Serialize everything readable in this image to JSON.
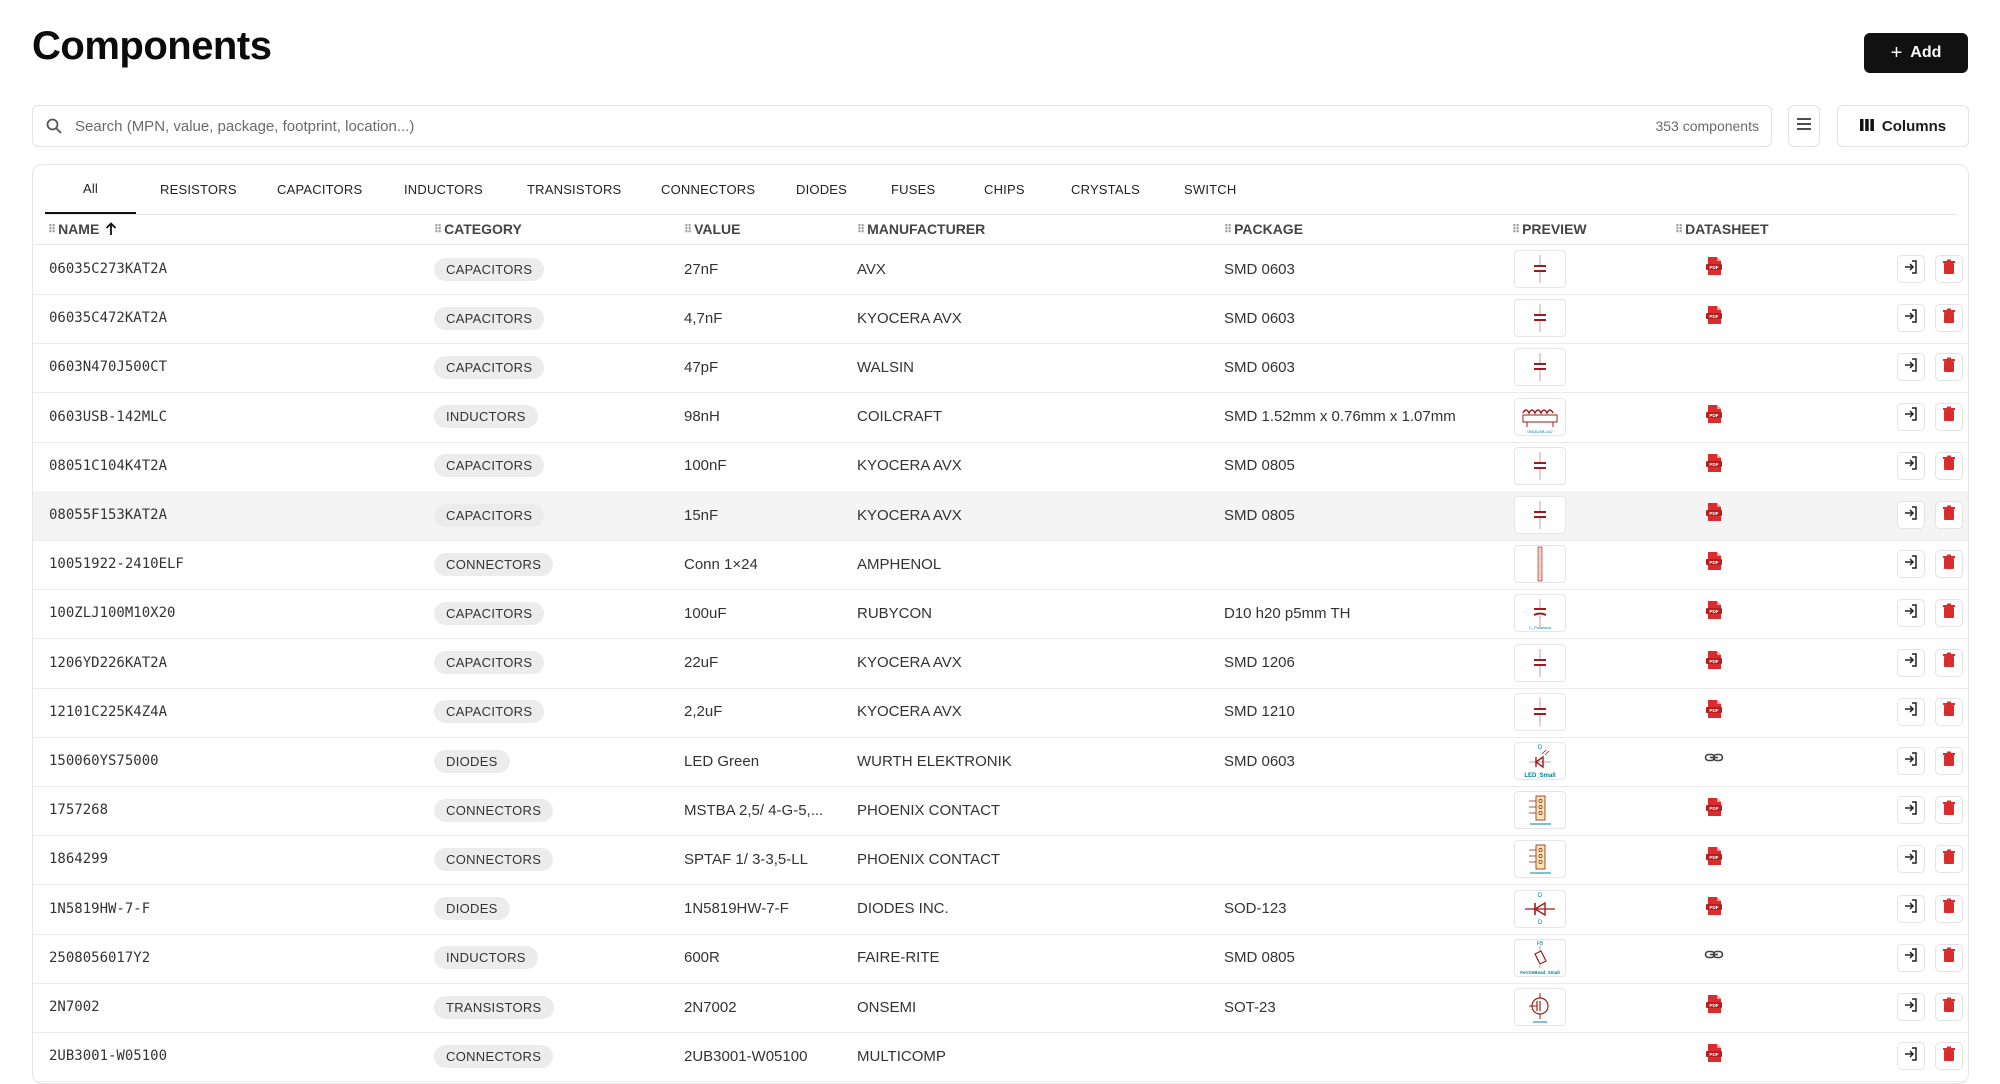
{
  "header": {
    "title": "Components",
    "add_label": "Add"
  },
  "search": {
    "placeholder": "Search (MPN, value, package, footprint, location...)",
    "count": "353 components"
  },
  "toolbar": {
    "columns_label": "Columns"
  },
  "tabs": [
    "All",
    "RESISTORS",
    "CAPACITORS",
    "INDUCTORS",
    "TRANSISTORS",
    "CONNECTORS",
    "DIODES",
    "FUSES",
    "CHIPS",
    "CRYSTALS",
    "SWITCH"
  ],
  "table": {
    "columns": [
      "NAME",
      "CATEGORY",
      "VALUE",
      "MANUFACTURER",
      "PACKAGE",
      "PREVIEW",
      "DATASHEET"
    ],
    "sort": {
      "column": "NAME",
      "direction": "ascending"
    },
    "rows": [
      {
        "name": "06035C273KAT2A",
        "category": "CAPACITORS",
        "value": "27nF",
        "manufacturer": "AVX",
        "package": "SMD 0603",
        "preview": "capacitor",
        "datasheet": "pdf"
      },
      {
        "name": "06035C472KAT2A",
        "category": "CAPACITORS",
        "value": "4,7nF",
        "manufacturer": "KYOCERA AVX",
        "package": "SMD 0603",
        "preview": "capacitor",
        "datasheet": "pdf"
      },
      {
        "name": "0603N470J500CT",
        "category": "CAPACITORS",
        "value": "47pF",
        "manufacturer": "WALSIN",
        "package": "SMD 0603",
        "preview": "capacitor",
        "datasheet": ""
      },
      {
        "name": "0603USB-142MLC",
        "category": "INDUCTORS",
        "value": "98nH",
        "manufacturer": "COILCRAFT",
        "package": "SMD 1.52mm x 0.76mm x 1.07mm",
        "preview": "inductor",
        "datasheet": "pdf"
      },
      {
        "name": "08051C104K4T2A",
        "category": "CAPACITORS",
        "value": "100nF",
        "manufacturer": "KYOCERA AVX",
        "package": "SMD 0805",
        "preview": "capacitor",
        "datasheet": "pdf"
      },
      {
        "name": "08055F153KAT2A",
        "category": "CAPACITORS",
        "value": "15nF",
        "manufacturer": "KYOCERA AVX",
        "package": "SMD 0805",
        "preview": "capacitor",
        "datasheet": "pdf"
      },
      {
        "name": "10051922-2410ELF",
        "category": "CONNECTORS",
        "value": "Conn 1×24",
        "manufacturer": "AMPHENOL",
        "package": "",
        "preview": "connector-strip",
        "datasheet": "pdf"
      },
      {
        "name": "100ZLJ100M10X20",
        "category": "CAPACITORS",
        "value": "100uF",
        "manufacturer": "RUBYCON",
        "package": "D10 h20 p5mm TH",
        "preview": "capacitor-polarized",
        "datasheet": "pdf"
      },
      {
        "name": "1206YD226KAT2A",
        "category": "CAPACITORS",
        "value": "22uF",
        "manufacturer": "KYOCERA AVX",
        "package": "SMD 1206",
        "preview": "capacitor",
        "datasheet": "pdf"
      },
      {
        "name": "12101C225K4Z4A",
        "category": "CAPACITORS",
        "value": "2,2uF",
        "manufacturer": "KYOCERA AVX",
        "package": "SMD 1210",
        "preview": "capacitor",
        "datasheet": "pdf"
      },
      {
        "name": "150060YS75000",
        "category": "DIODES",
        "value": "LED Green",
        "manufacturer": "WURTH ELEKTRONIK",
        "package": "SMD 0603",
        "preview": "led",
        "datasheet": "link"
      },
      {
        "name": "1757268",
        "category": "CONNECTORS",
        "value": "MSTBA 2,5/ 4-G-5,...",
        "manufacturer": "PHOENIX CONTACT",
        "package": "",
        "preview": "terminal",
        "datasheet": "pdf"
      },
      {
        "name": "1864299",
        "category": "CONNECTORS",
        "value": "SPTAF 1/ 3-3,5-LL",
        "manufacturer": "PHOENIX CONTACT",
        "package": "",
        "preview": "terminal",
        "datasheet": "pdf"
      },
      {
        "name": "1N5819HW-7-F",
        "category": "DIODES",
        "value": "1N5819HW-7-F",
        "manufacturer": "DIODES INC.",
        "package": "SOD-123",
        "preview": "diode",
        "datasheet": "pdf"
      },
      {
        "name": "2508056017Y2",
        "category": "INDUCTORS",
        "value": "600R",
        "manufacturer": "FAIRE-RITE",
        "package": "SMD 0805",
        "preview": "ferrite",
        "datasheet": "link"
      },
      {
        "name": "2N7002",
        "category": "TRANSISTORS",
        "value": "2N7002",
        "manufacturer": "ONSEMI",
        "package": "SOT-23",
        "preview": "mosfet",
        "datasheet": "pdf"
      },
      {
        "name": "2UB3001-W05100",
        "category": "CONNECTORS",
        "value": "2UB3001-W05100",
        "manufacturer": "MULTICOMP",
        "package": "",
        "preview": "",
        "datasheet": "pdf"
      }
    ]
  },
  "preview_labels": {
    "led_ref": "D",
    "led_name": "LED_Small",
    "diode_ref": "D",
    "diode_name": "D",
    "ferrite_ref": "FB",
    "ferrite_name": "FerriteBead_Small",
    "inductor_name": "0603USB-142",
    "cap_pol_name": "C_Polarized"
  },
  "colors": {
    "accent": "#111111",
    "danger": "#d92d2d",
    "schematic": "#9b1c1c",
    "schematic_text": "#00839a"
  },
  "icons": {
    "search": "search-icon",
    "add": "plus-icon",
    "menu": "menu-icon",
    "columns": "columns-icon",
    "sort": "arrow-up-icon",
    "pdf": "pdf-icon",
    "link": "link-icon",
    "open": "open-icon",
    "delete": "trash-icon"
  }
}
